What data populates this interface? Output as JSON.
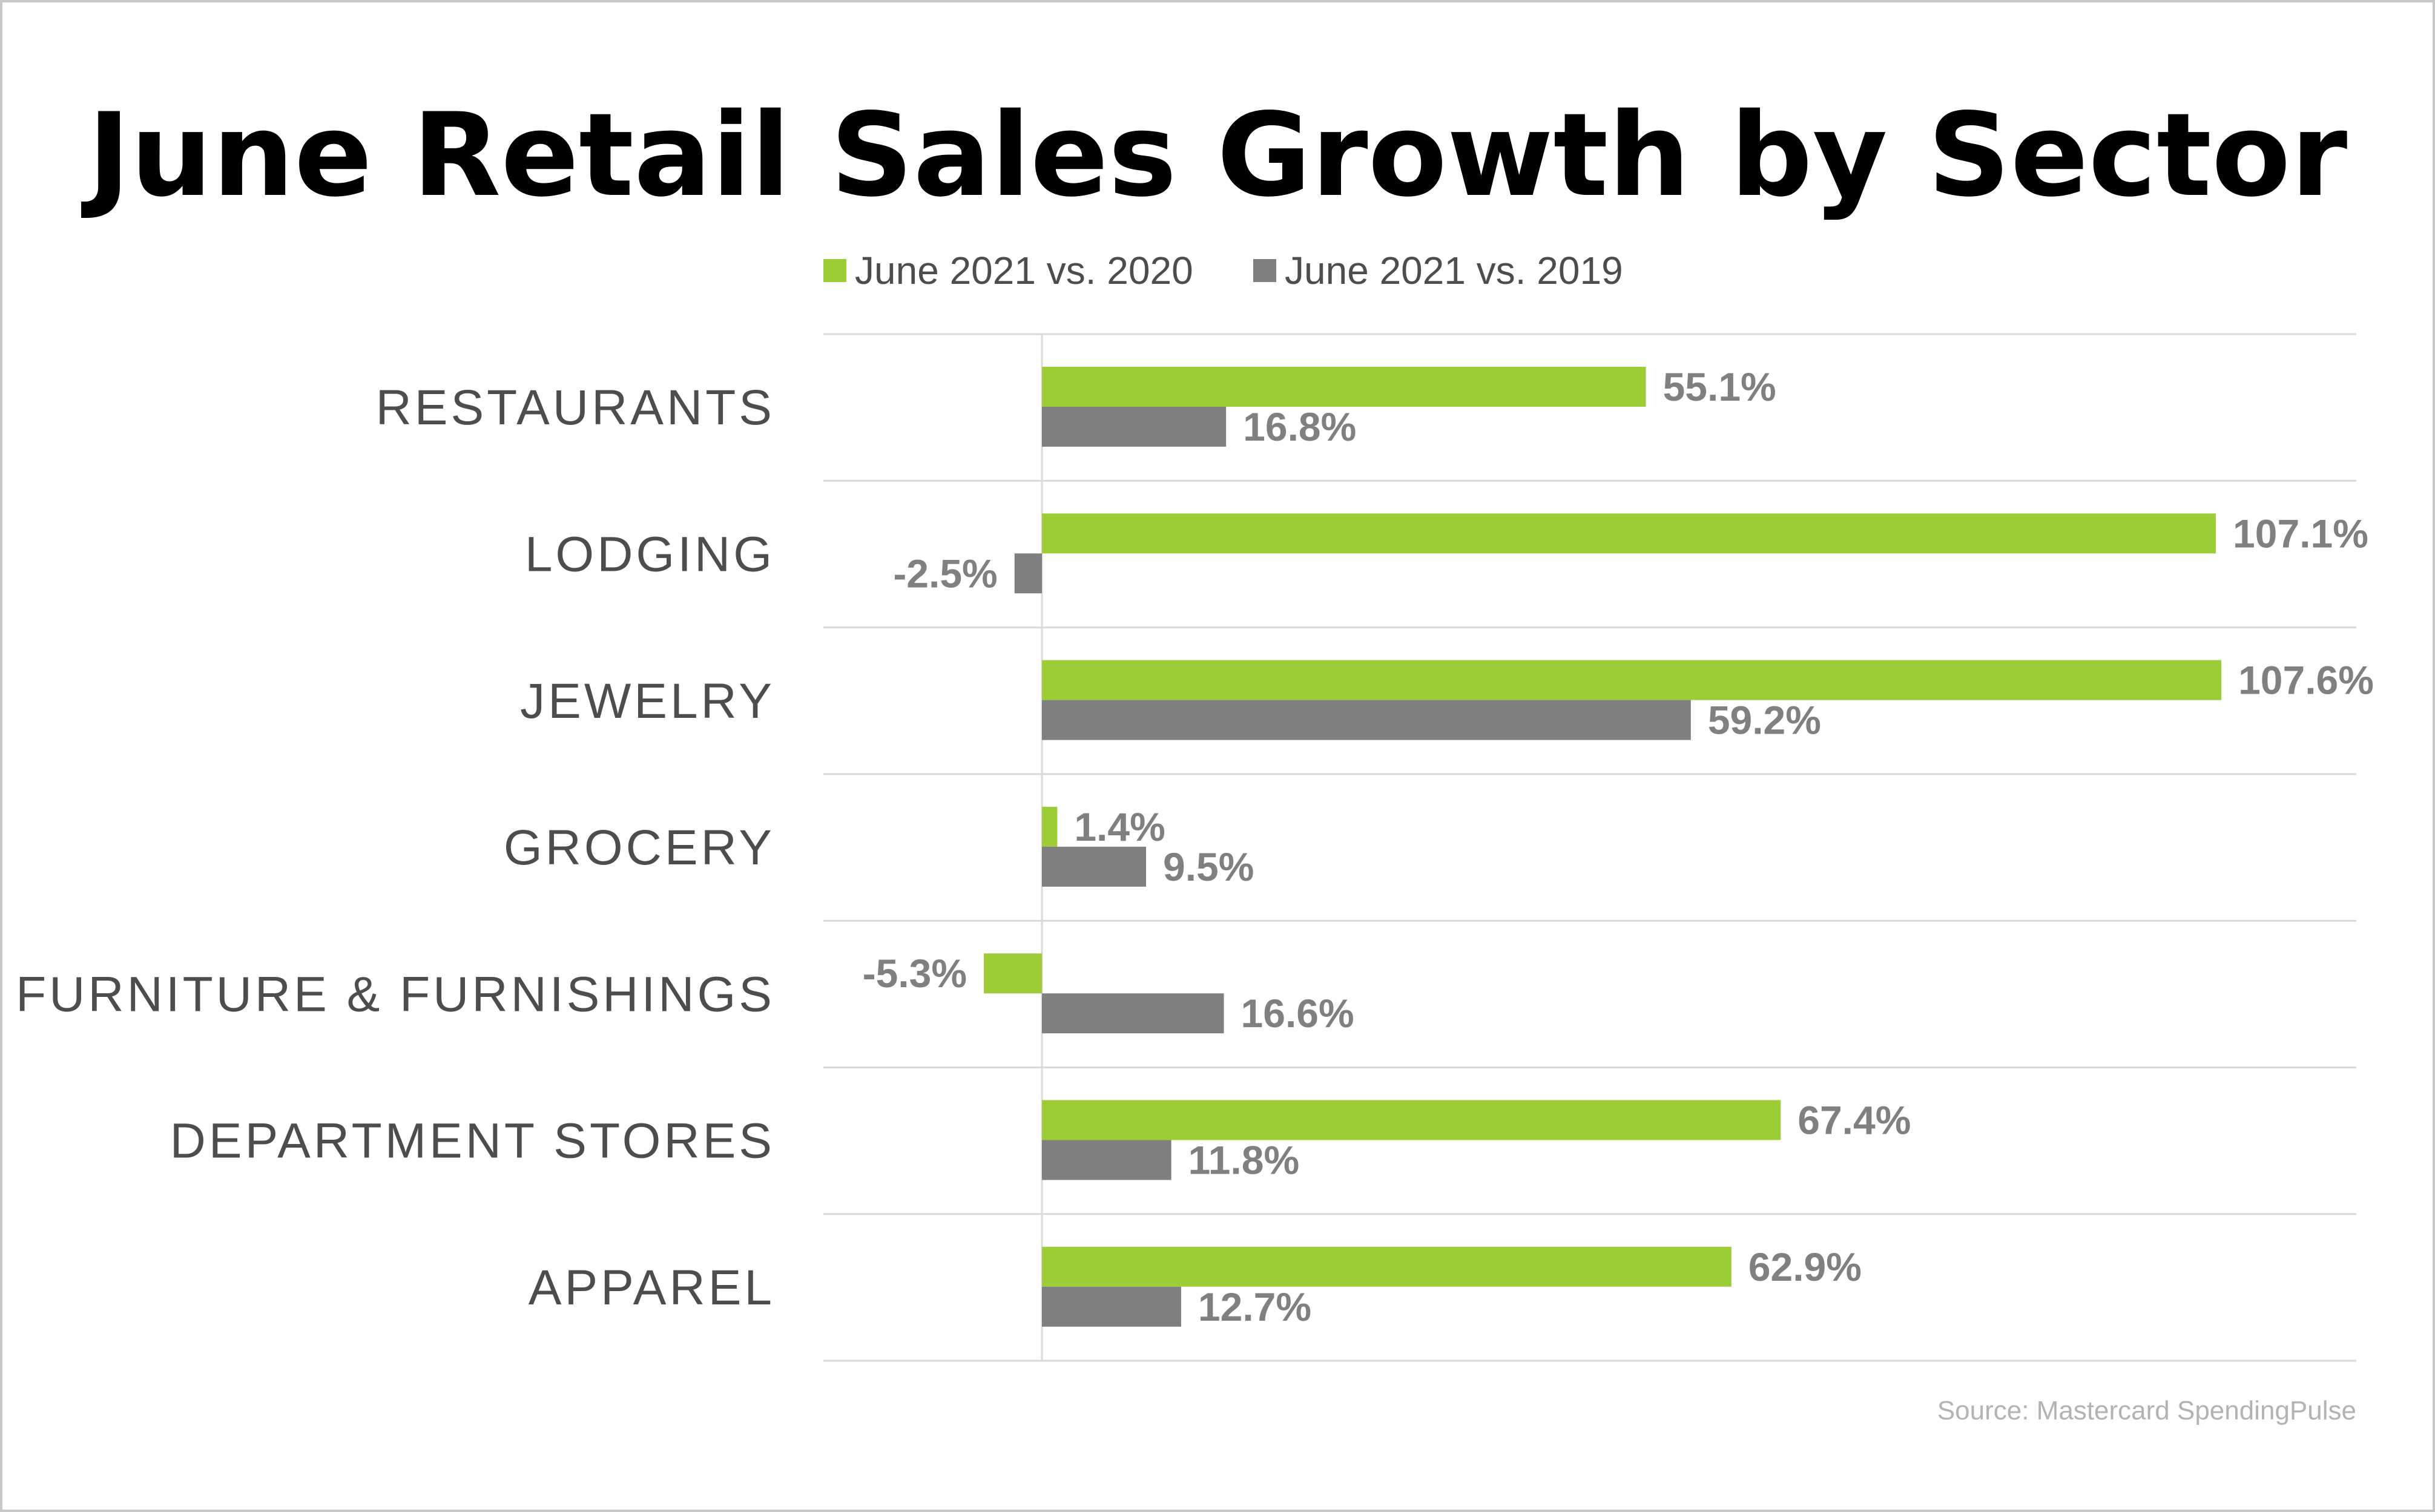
{
  "chart_data": {
    "type": "bar",
    "orientation": "horizontal",
    "title": "June Retail Sales Growth by Sector",
    "categories": [
      "RESTAURANTS",
      "LODGING",
      "JEWELRY",
      "GROCERY",
      "FURNITURE & FURNISHINGS",
      "DEPARTMENT STORES",
      "APPAREL"
    ],
    "series": [
      {
        "name": "June 2021 vs. 2020",
        "color": "#9ccc36",
        "values": [
          55.1,
          107.1,
          107.6,
          1.4,
          -5.3,
          67.4,
          62.9
        ]
      },
      {
        "name": "June 2021 vs. 2019",
        "color": "#7f7f7f",
        "values": [
          16.8,
          -2.5,
          59.2,
          9.5,
          16.6,
          11.8,
          12.7
        ]
      }
    ],
    "value_suffix": "%",
    "legend_position": "top",
    "grid": "horizontal separators between categories",
    "source": "Source: Mastercard SpendingPulse"
  }
}
